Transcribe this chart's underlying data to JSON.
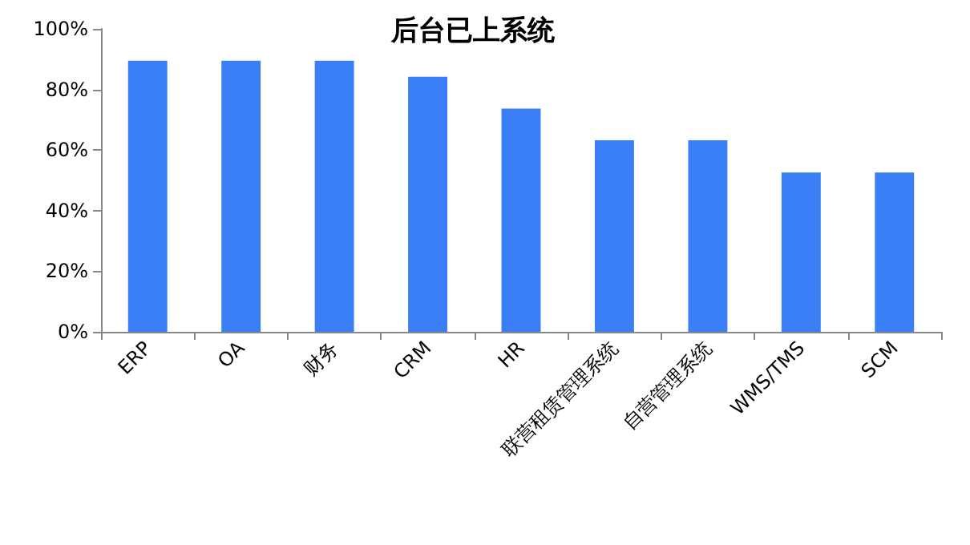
{
  "chart_data": {
    "type": "bar",
    "title": "后台已上系统",
    "categories": [
      "ERP",
      "OA",
      "财务",
      "CRM",
      "HR",
      "联营租赁管理系统",
      "自营管理系统",
      "WMS/TMS",
      "SCM"
    ],
    "values": [
      89.5,
      89.5,
      89.5,
      84.2,
      73.7,
      63.2,
      63.2,
      52.6,
      52.6
    ],
    "color": "#3a7ff6",
    "ylim": [
      0,
      100
    ],
    "yticks": [
      {
        "value": 0,
        "label": "0%"
      },
      {
        "value": 20,
        "label": "20%"
      },
      {
        "value": 40,
        "label": "40%"
      },
      {
        "value": 60,
        "label": "60%"
      },
      {
        "value": 80,
        "label": "80%"
      },
      {
        "value": 100,
        "label": "100%"
      }
    ],
    "grid": false
  }
}
